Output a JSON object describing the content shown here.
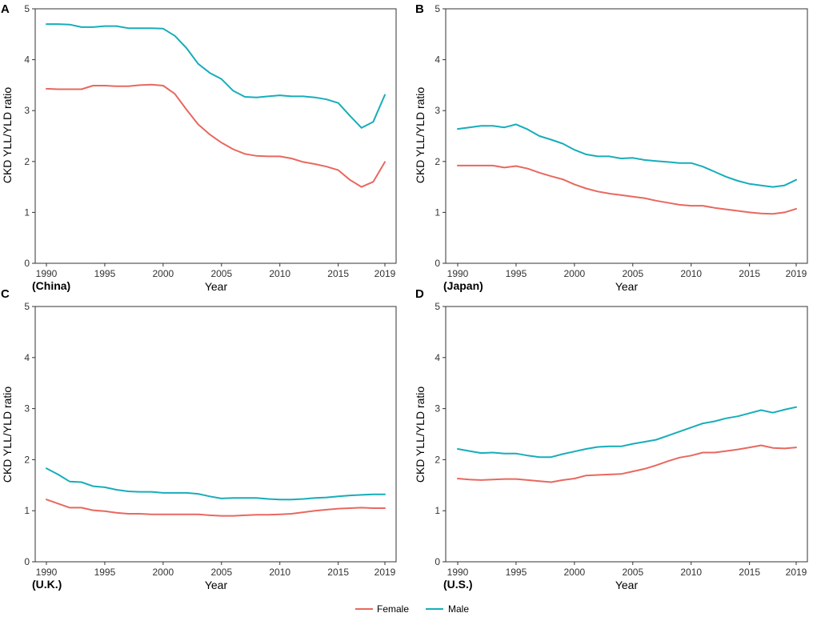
{
  "colors": {
    "female": "#E8685F",
    "male": "#17ADBA",
    "axis": "#333333"
  },
  "legend": [
    {
      "name": "Female",
      "color": "#E8685F"
    },
    {
      "name": "Male",
      "color": "#17ADBA"
    }
  ],
  "chart_data": [
    {
      "type": "line",
      "panel": "A",
      "country": "(China)",
      "xlabel": "Year",
      "ylabel": "CKD YLL/YLD ratio",
      "xlim": [
        1990,
        2019
      ],
      "ylim": [
        0,
        5
      ],
      "xticks": [
        1990,
        1995,
        2000,
        2005,
        2010,
        2015,
        2019
      ],
      "yticks": [
        0,
        1,
        2,
        3,
        4,
        5
      ],
      "x": [
        1990,
        1991,
        1992,
        1993,
        1994,
        1995,
        1996,
        1997,
        1998,
        1999,
        2000,
        2001,
        2002,
        2003,
        2004,
        2005,
        2006,
        2007,
        2008,
        2009,
        2010,
        2011,
        2012,
        2013,
        2014,
        2015,
        2016,
        2017,
        2018,
        2019
      ],
      "series": [
        {
          "name": "Female",
          "values": [
            3.43,
            3.42,
            3.42,
            3.42,
            3.49,
            3.49,
            3.48,
            3.48,
            3.5,
            3.51,
            3.49,
            3.33,
            3.02,
            2.73,
            2.53,
            2.37,
            2.24,
            2.15,
            2.11,
            2.1,
            2.1,
            2.06,
            1.99,
            1.95,
            1.9,
            1.83,
            1.64,
            1.5,
            1.6,
            1.99
          ]
        },
        {
          "name": "Male",
          "values": [
            4.7,
            4.7,
            4.69,
            4.64,
            4.64,
            4.66,
            4.66,
            4.62,
            4.62,
            4.62,
            4.61,
            4.47,
            4.23,
            3.92,
            3.74,
            3.62,
            3.39,
            3.27,
            3.26,
            3.28,
            3.3,
            3.28,
            3.28,
            3.26,
            3.22,
            3.15,
            2.9,
            2.66,
            2.78,
            3.31
          ]
        }
      ]
    },
    {
      "type": "line",
      "panel": "B",
      "country": "(Japan)",
      "xlabel": "Year",
      "ylabel": "CKD YLL/YLD ratio",
      "xlim": [
        1990,
        2019
      ],
      "ylim": [
        0,
        5
      ],
      "xticks": [
        1990,
        1995,
        2000,
        2005,
        2010,
        2015,
        2019
      ],
      "yticks": [
        0,
        1,
        2,
        3,
        4,
        5
      ],
      "x": [
        1990,
        1991,
        1992,
        1993,
        1994,
        1995,
        1996,
        1997,
        1998,
        1999,
        2000,
        2001,
        2002,
        2003,
        2004,
        2005,
        2006,
        2007,
        2008,
        2009,
        2010,
        2011,
        2012,
        2013,
        2014,
        2015,
        2016,
        2017,
        2018,
        2019
      ],
      "series": [
        {
          "name": "Female",
          "values": [
            1.92,
            1.92,
            1.92,
            1.92,
            1.88,
            1.91,
            1.86,
            1.78,
            1.71,
            1.65,
            1.55,
            1.47,
            1.41,
            1.37,
            1.34,
            1.31,
            1.28,
            1.23,
            1.19,
            1.15,
            1.13,
            1.13,
            1.09,
            1.06,
            1.03,
            1.0,
            0.98,
            0.97,
            1.0,
            1.07
          ]
        },
        {
          "name": "Male",
          "values": [
            2.64,
            2.67,
            2.7,
            2.7,
            2.67,
            2.73,
            2.63,
            2.5,
            2.43,
            2.35,
            2.23,
            2.14,
            2.1,
            2.1,
            2.06,
            2.07,
            2.03,
            2.01,
            1.99,
            1.97,
            1.97,
            1.9,
            1.8,
            1.7,
            1.62,
            1.56,
            1.53,
            1.5,
            1.53,
            1.64
          ]
        }
      ]
    },
    {
      "type": "line",
      "panel": "C",
      "country": "(U.K.)",
      "xlabel": "Year",
      "ylabel": "CKD YLL/YLD ratio",
      "xlim": [
        1990,
        2019
      ],
      "ylim": [
        0,
        5
      ],
      "xticks": [
        1990,
        1995,
        2000,
        2005,
        2010,
        2015,
        2019
      ],
      "yticks": [
        0,
        1,
        2,
        3,
        4,
        5
      ],
      "x": [
        1990,
        1991,
        1992,
        1993,
        1994,
        1995,
        1996,
        1997,
        1998,
        1999,
        2000,
        2001,
        2002,
        2003,
        2004,
        2005,
        2006,
        2007,
        2008,
        2009,
        2010,
        2011,
        2012,
        2013,
        2014,
        2015,
        2016,
        2017,
        2018,
        2019
      ],
      "series": [
        {
          "name": "Female",
          "values": [
            1.22,
            1.14,
            1.06,
            1.06,
            1.01,
            0.99,
            0.96,
            0.94,
            0.94,
            0.93,
            0.93,
            0.93,
            0.93,
            0.93,
            0.91,
            0.9,
            0.9,
            0.91,
            0.92,
            0.92,
            0.93,
            0.94,
            0.97,
            1.0,
            1.02,
            1.04,
            1.05,
            1.06,
            1.05,
            1.05
          ]
        },
        {
          "name": "Male",
          "values": [
            1.83,
            1.71,
            1.57,
            1.56,
            1.48,
            1.46,
            1.41,
            1.38,
            1.37,
            1.37,
            1.35,
            1.35,
            1.35,
            1.33,
            1.28,
            1.24,
            1.25,
            1.25,
            1.25,
            1.23,
            1.22,
            1.22,
            1.23,
            1.25,
            1.26,
            1.28,
            1.3,
            1.31,
            1.32,
            1.32
          ]
        }
      ]
    },
    {
      "type": "line",
      "panel": "D",
      "country": "(U.S.)",
      "xlabel": "Year",
      "ylabel": "CKD YLL/YLD ratio",
      "xlim": [
        1990,
        2019
      ],
      "ylim": [
        0,
        5
      ],
      "xticks": [
        1990,
        1995,
        2000,
        2005,
        2010,
        2015,
        2019
      ],
      "yticks": [
        0,
        1,
        2,
        3,
        4,
        5
      ],
      "x": [
        1990,
        1991,
        1992,
        1993,
        1994,
        1995,
        1996,
        1997,
        1998,
        1999,
        2000,
        2001,
        2002,
        2003,
        2004,
        2005,
        2006,
        2007,
        2008,
        2009,
        2010,
        2011,
        2012,
        2013,
        2014,
        2015,
        2016,
        2017,
        2018,
        2019
      ],
      "series": [
        {
          "name": "Female",
          "values": [
            1.63,
            1.61,
            1.6,
            1.61,
            1.62,
            1.62,
            1.6,
            1.58,
            1.56,
            1.6,
            1.63,
            1.69,
            1.7,
            1.71,
            1.72,
            1.77,
            1.82,
            1.89,
            1.97,
            2.04,
            2.08,
            2.14,
            2.14,
            2.17,
            2.2,
            2.24,
            2.28,
            2.23,
            2.22,
            2.24
          ]
        },
        {
          "name": "Male",
          "values": [
            2.21,
            2.17,
            2.13,
            2.14,
            2.12,
            2.12,
            2.08,
            2.05,
            2.05,
            2.11,
            2.16,
            2.21,
            2.25,
            2.26,
            2.26,
            2.31,
            2.35,
            2.39,
            2.47,
            2.55,
            2.63,
            2.71,
            2.75,
            2.81,
            2.85,
            2.91,
            2.97,
            2.92,
            2.98,
            3.03
          ]
        }
      ]
    }
  ]
}
